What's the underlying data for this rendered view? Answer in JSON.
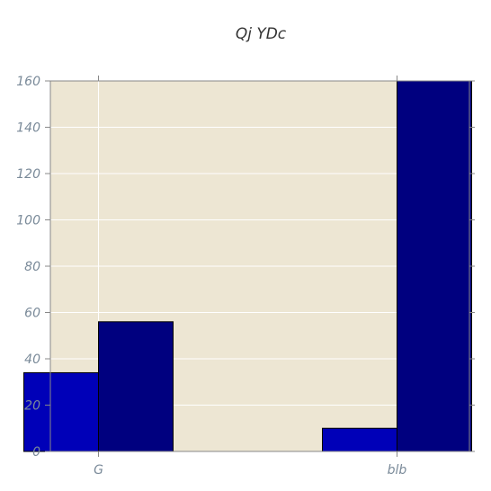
{
  "chart_data": {
    "type": "bar",
    "title": "Qj YDc",
    "xlabel": "",
    "ylabel": "",
    "categories": [
      "G",
      "blb"
    ],
    "series": [
      {
        "values": [
          34,
          10
        ],
        "color": "#0000b8"
      },
      {
        "values": [
          56,
          160
        ],
        "color": "#00007f"
      }
    ],
    "ylim": [
      0,
      160
    ],
    "yticks": [
      0,
      20,
      40,
      60,
      80,
      100,
      120,
      140,
      160
    ],
    "grid": true,
    "plot_background": "#ede6d3",
    "grid_color": "#ffffff",
    "tick_label_color": "#7a8a99"
  }
}
